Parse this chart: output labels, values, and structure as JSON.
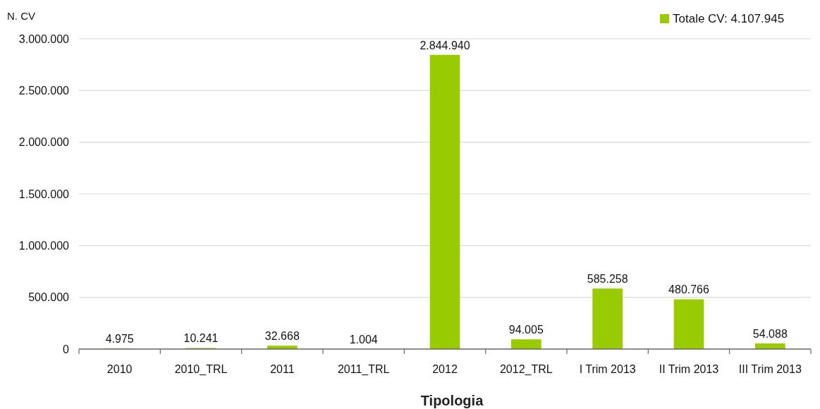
{
  "chart_data": {
    "type": "bar",
    "ylabel": "N. CV",
    "xlabel": "Tipologia",
    "categories": [
      "2010",
      "2010_TRL",
      "2011",
      "2011_TRL",
      "2012",
      "2012_TRL",
      "I Trim 2013",
      "II Trim 2013",
      "III Trim 2013"
    ],
    "series": [
      {
        "name": "Totale CV: 4.107.945",
        "color": "#99cc00",
        "values": [
          4975,
          10241,
          32668,
          1004,
          2844940,
          94005,
          585258,
          480766,
          54088
        ],
        "value_labels": [
          "4.975",
          "10.241",
          "32.668",
          "1.004",
          "2.844.940",
          "94.005",
          "585.258",
          "480.766",
          "54.088"
        ]
      }
    ],
    "ylim": [
      0,
      3000000
    ],
    "yticks": [
      0,
      {
        "value": 500000,
        "label": "500.000"
      },
      {
        "value": 1000000,
        "label": "1.000.000"
      },
      {
        "value": 1500000,
        "label": "1.500.000"
      },
      {
        "value": 2000000,
        "label": "2.000.000"
      },
      {
        "value": 2500000,
        "label": "2.500.000"
      },
      {
        "value": 3000000,
        "label": "3.000.000"
      }
    ],
    "grid": "y",
    "legend": "top right"
  }
}
